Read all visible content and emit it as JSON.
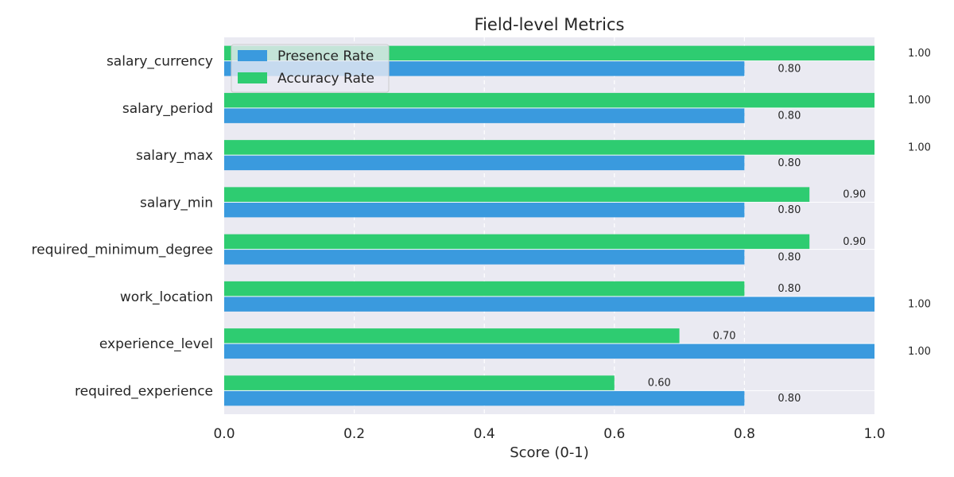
{
  "chart_data": {
    "type": "bar",
    "orientation": "horizontal",
    "title": "Field-level Metrics",
    "xlabel": "Score (0-1)",
    "ylabel": "",
    "xlim": [
      0,
      1.0
    ],
    "xticks": [
      "0.0",
      "0.2",
      "0.4",
      "0.6",
      "0.8",
      "1.0"
    ],
    "grid": true,
    "legend_position": "top-left",
    "categories": [
      "salary_currency",
      "salary_period",
      "salary_max",
      "salary_min",
      "required_minimum_degree",
      "work_location",
      "experience_level",
      "required_experience"
    ],
    "series": [
      {
        "name": "Presence Rate",
        "color": "#3a9ade",
        "values": [
          0.8,
          0.8,
          0.8,
          0.8,
          0.8,
          1.0,
          1.0,
          0.8
        ],
        "labels": [
          "0.80",
          "0.80",
          "0.80",
          "0.80",
          "0.80",
          "1.00",
          "1.00",
          "0.80"
        ]
      },
      {
        "name": "Accuracy Rate",
        "color": "#2ecc71",
        "values": [
          1.0,
          1.0,
          1.0,
          0.9,
          0.9,
          0.8,
          0.7,
          0.6
        ],
        "labels": [
          "1.00",
          "1.00",
          "1.00",
          "0.90",
          "0.90",
          "0.80",
          "0.70",
          "0.60"
        ]
      }
    ]
  }
}
